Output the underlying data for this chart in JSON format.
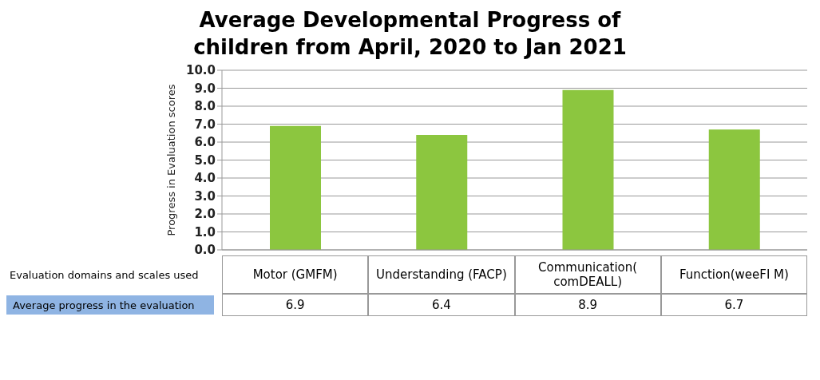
{
  "chart_data": {
    "type": "bar",
    "title": "Average Developmental Progress of children from April, 2020 to Jan 2021",
    "ylabel": "Progress in Evaluation scores",
    "categories": [
      "Motor (GMFM)",
      "Understanding (FACP)",
      "Communication( comDEALL)",
      "Function(weeFI M)"
    ],
    "values": [
      6.9,
      6.4,
      8.9,
      6.7
    ],
    "color": "#8cc63f",
    "data_labels": true,
    "ylim": [
      0,
      10
    ],
    "yticks": [
      {
        "value": 0,
        "label": "0.0"
      },
      {
        "value": 1,
        "label": "1.0"
      },
      {
        "value": 2,
        "label": "2.0"
      },
      {
        "value": 3,
        "label": "3.0"
      },
      {
        "value": 4,
        "label": "4.0"
      },
      {
        "value": 5,
        "label": "5.0"
      },
      {
        "value": 6,
        "label": "6.0"
      },
      {
        "value": 7,
        "label": "7.0"
      },
      {
        "value": 8,
        "label": "8.0"
      },
      {
        "value": 9,
        "label": "9.0"
      },
      {
        "value": 10,
        "label": "10.0"
      }
    ],
    "grid": "y",
    "annotations": [
      "Evaluation domains and scales used",
      "Average progress in the evaluation"
    ]
  }
}
